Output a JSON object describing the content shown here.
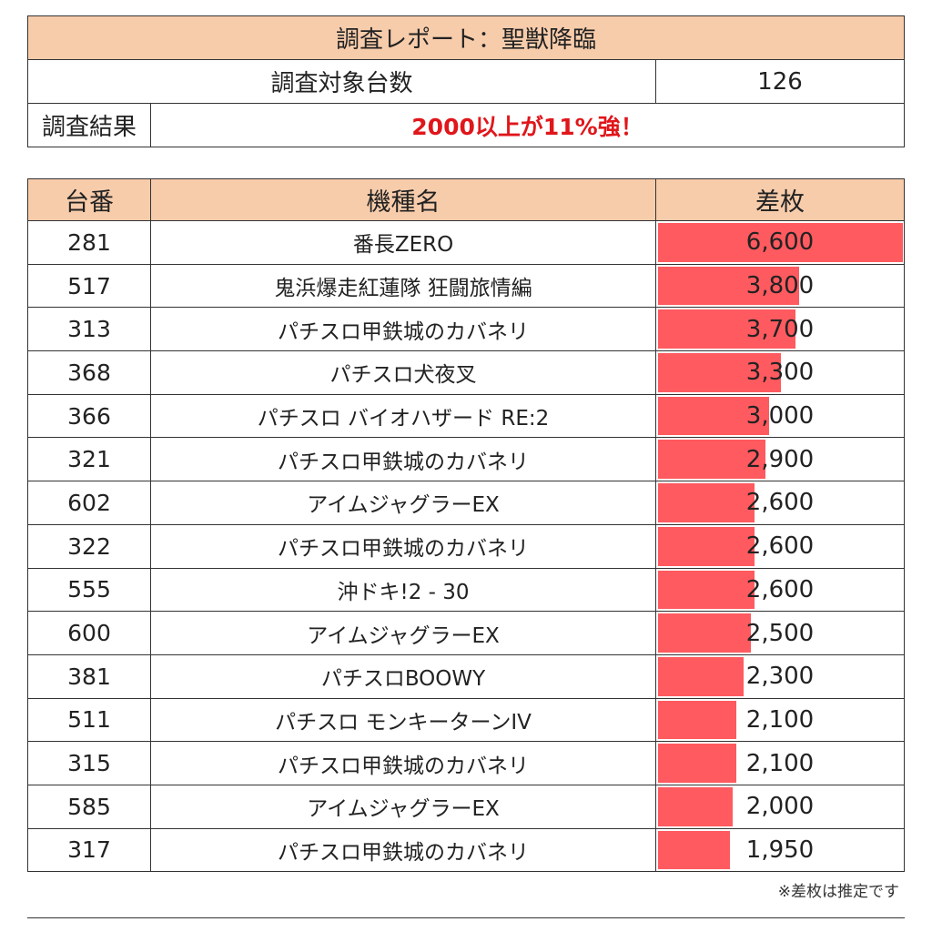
{
  "summary": {
    "title": "調査レポート：聖獣降臨",
    "count_label": "調査対象台数",
    "count_value": "126",
    "result_label": "調査結果",
    "result_text": "2000以上が11%強！"
  },
  "table": {
    "headers": [
      "台番",
      "機種名",
      "差枚"
    ],
    "rows": [
      {
        "no": "281",
        "name": "番長ZERO",
        "diff": "6,600"
      },
      {
        "no": "517",
        "name": "鬼浜爆走紅蓮隊 狂闘旅情編",
        "diff": "3,800"
      },
      {
        "no": "313",
        "name": "パチスロ甲鉄城のカバネリ",
        "diff": "3,700"
      },
      {
        "no": "368",
        "name": "パチスロ犬夜叉",
        "diff": "3,300"
      },
      {
        "no": "366",
        "name": "パチスロ バイオハザード RE:2",
        "diff": "3,000"
      },
      {
        "no": "321",
        "name": "パチスロ甲鉄城のカバネリ",
        "diff": "2,900"
      },
      {
        "no": "602",
        "name": "アイムジャグラーEX",
        "diff": "2,600"
      },
      {
        "no": "322",
        "name": "パチスロ甲鉄城のカバネリ",
        "diff": "2,600"
      },
      {
        "no": "555",
        "name": "沖ドキ!2 - 30",
        "diff": "2,600"
      },
      {
        "no": "600",
        "name": "アイムジャグラーEX",
        "diff": "2,500"
      },
      {
        "no": "381",
        "name": "パチスロBOOWY",
        "diff": "2,300"
      },
      {
        "no": "511",
        "name": "パチスロ モンキーターンIV",
        "diff": "2,100"
      },
      {
        "no": "315",
        "name": "パチスロ甲鉄城のカバネリ",
        "diff": "2,100"
      },
      {
        "no": "585",
        "name": "アイムジャグラーEX",
        "diff": "2,000"
      },
      {
        "no": "317",
        "name": "パチスロ甲鉄城のカバネリ",
        "diff": "1,950"
      }
    ]
  },
  "footnote": "※差枚は推定です",
  "colors": {
    "header_bg": "#f7ccab",
    "bar": "#ff5a5f",
    "result_text": "#e0161b"
  }
}
